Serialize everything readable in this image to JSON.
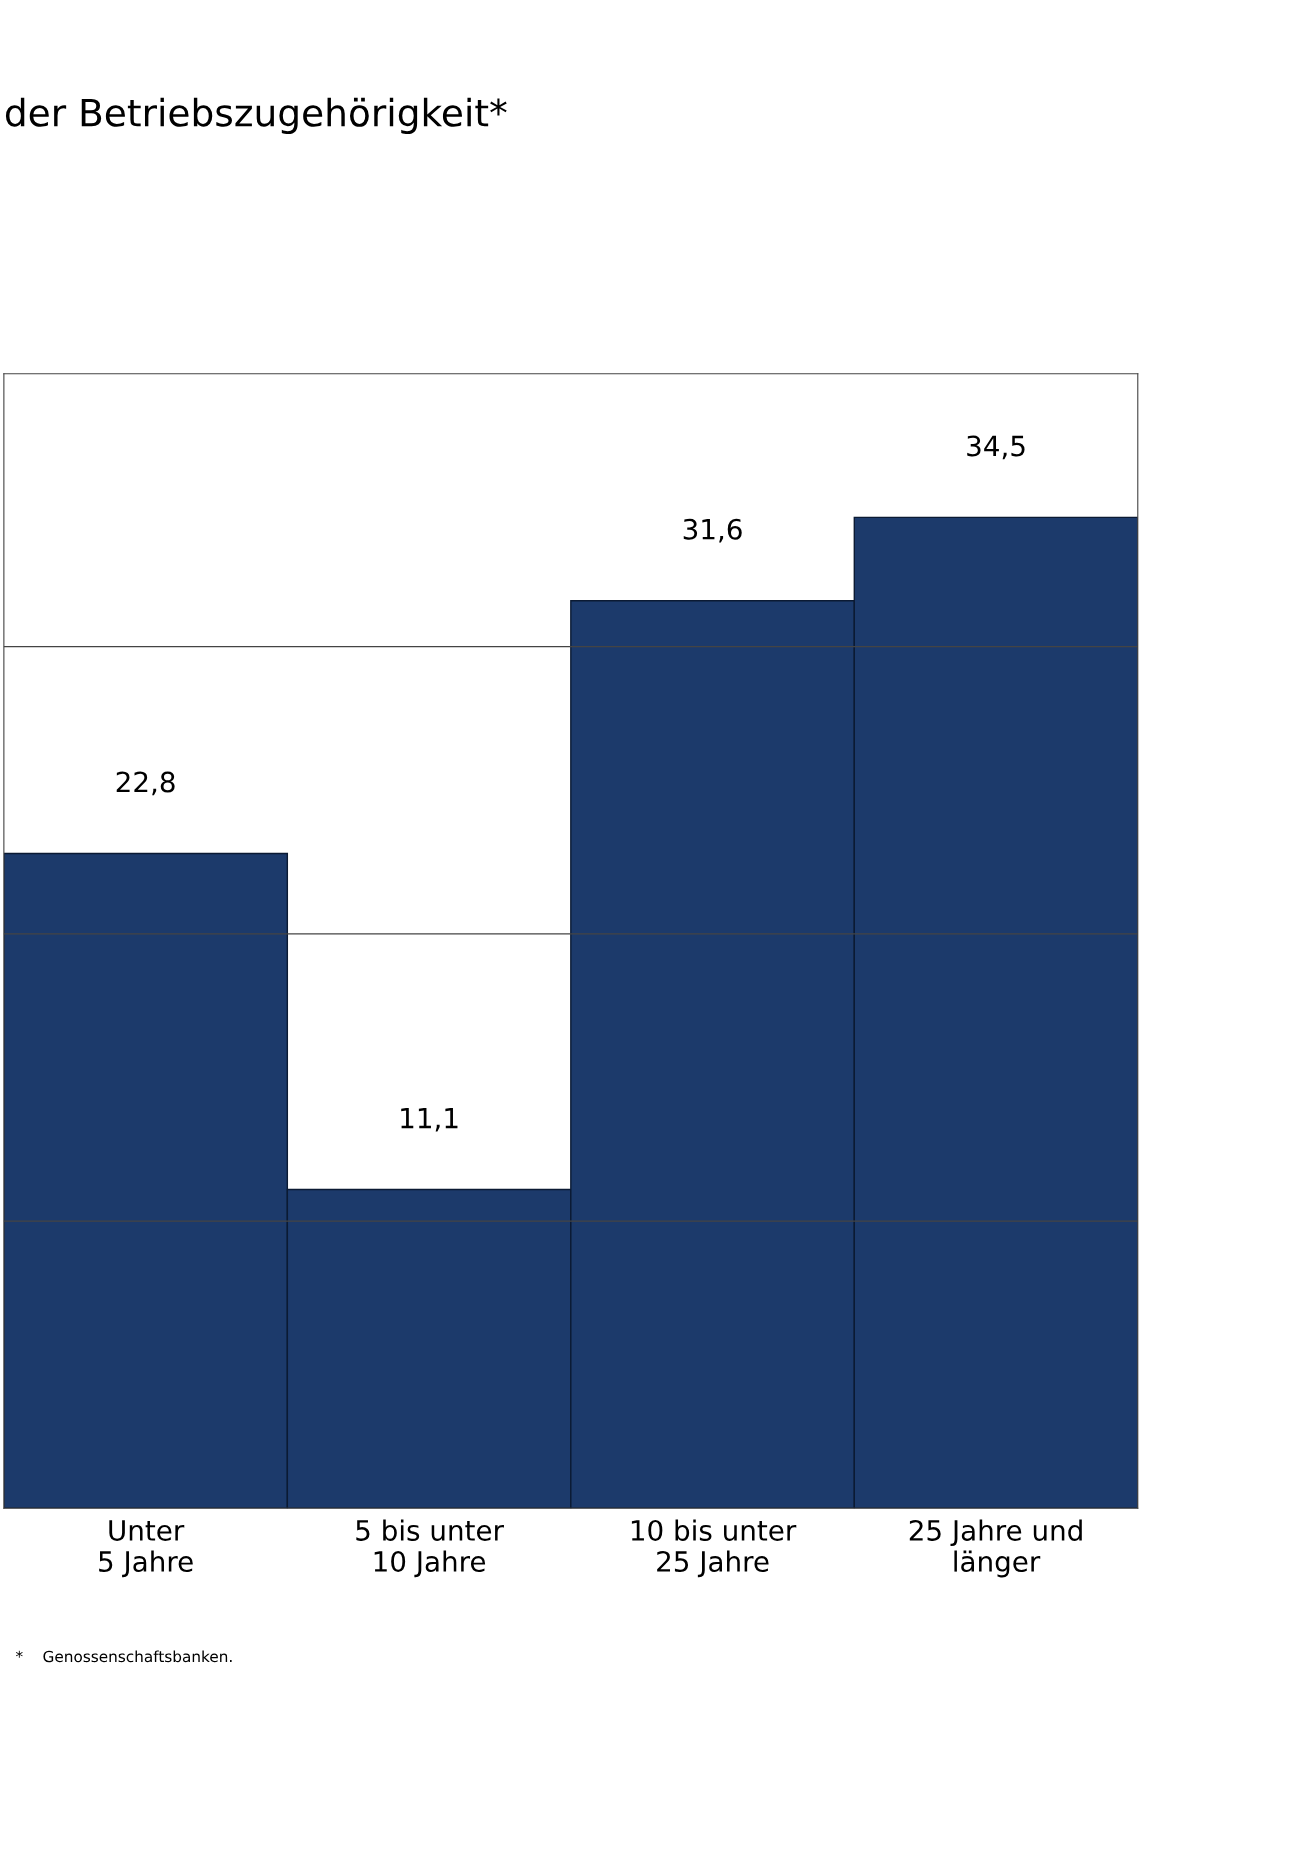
{
  "chart_data": {
    "type": "bar",
    "title": "der Betriebszugehörigkeit*",
    "categories": [
      "Unter\n5 Jahre",
      "5 bis unter\n10 Jahre",
      "10 bis unter\n25 Jahre",
      "25 Jahre und\nlänger"
    ],
    "values": [
      22.8,
      11.1,
      31.6,
      34.5
    ],
    "color": "#1c3a6b",
    "value_labels": [
      "22,8",
      "11,1",
      "31,6",
      "34,5"
    ],
    "ylim": [
      0,
      39.5
    ],
    "yticks": [
      {
        "value": 10,
        "label": null
      },
      {
        "value": 20,
        "label": null
      },
      {
        "value": 30,
        "label": null
      }
    ],
    "tick_labels": "x",
    "grid": "y",
    "annotations": [
      "*    Genossenschaftsbanken."
    ]
  }
}
